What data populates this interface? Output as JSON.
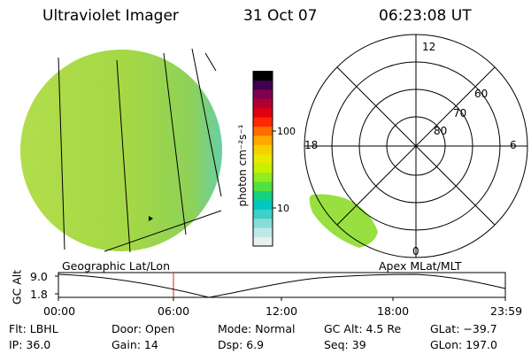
{
  "header": {
    "title": "Ultraviolet Imager",
    "date": "31 Oct 07",
    "time": "06:23:08 UT"
  },
  "colorbar": {
    "label": "photon cm⁻²s⁻¹",
    "ticks": [
      "100",
      "10"
    ],
    "colors": [
      "#e8f0f0",
      "#c0e8e8",
      "#88dcd8",
      "#40d0c8",
      "#00c8c0",
      "#18d080",
      "#50e040",
      "#90ec20",
      "#c8f000",
      "#e8e800",
      "#f8d000",
      "#ffa800",
      "#ff6c00",
      "#ff2800",
      "#e00010",
      "#b00030",
      "#800050",
      "#400050",
      "#000000"
    ]
  },
  "polar": {
    "mlt_labels": [
      "12",
      "18",
      "6",
      "0"
    ],
    "lat_labels": [
      "60",
      "70",
      "80"
    ]
  },
  "timeline": {
    "left_title": "Geographic Lat/Lon",
    "right_title": "Apex  MLat/MLT",
    "axis_name": "GC Alt",
    "y_ticks": [
      "9.0",
      "1.8"
    ],
    "x_ticks": [
      "00:00",
      "06:00",
      "12:00",
      "18:00",
      "23:59"
    ]
  },
  "info": {
    "flt": "Flt: LBHL",
    "ip": "IP: 36.0",
    "door": "Door: Open",
    "gain": "Gain: 14",
    "mode": "Mode: Normal",
    "dsp": "Dsp:      6.9",
    "gcalt": "GC Alt: 4.5 Re",
    "seq": "Seq: 39",
    "glat": "GLat: −39.7",
    "glon": "GLon: 197.0"
  },
  "theme": {
    "disk_fill": "#a8e03c",
    "disk_edge": "#60d8c0",
    "marker": "#e02020"
  }
}
